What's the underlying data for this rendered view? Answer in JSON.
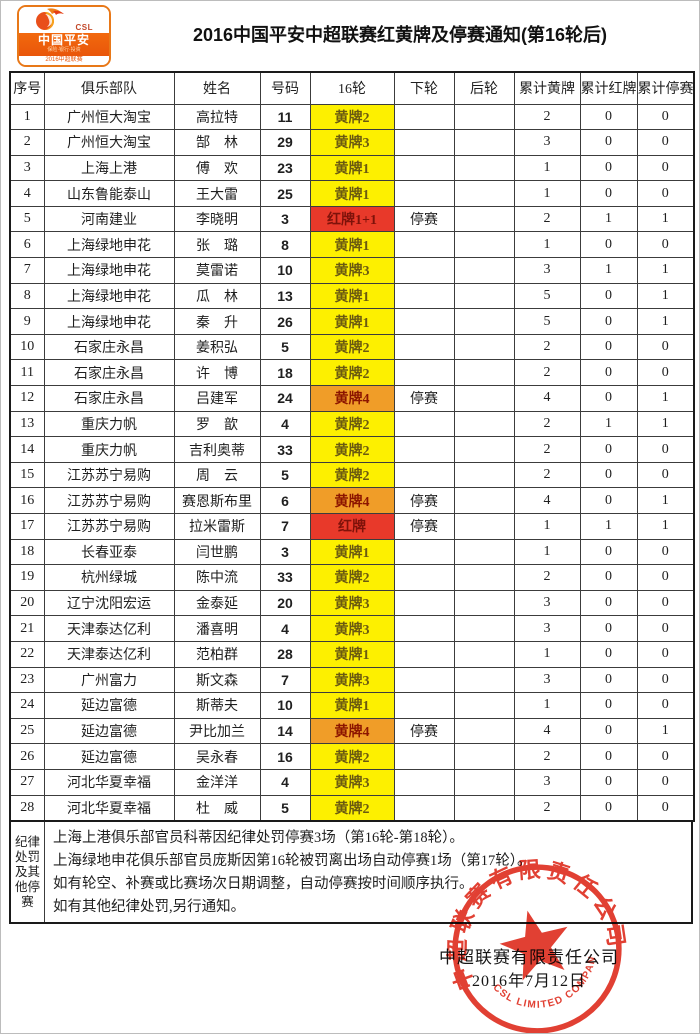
{
  "page": {
    "title": "2016中国平安中超联赛红黄牌及停赛通知(第16轮后)"
  },
  "logo": {
    "csl_label": "CSL",
    "brand": "中国平安",
    "tagline": "保险·银行·投资",
    "season": "2016中超联赛"
  },
  "table": {
    "headers": [
      "序号",
      "俱乐部队",
      "姓名",
      "号码",
      "16轮",
      "下轮",
      "后轮",
      "累计黄牌",
      "累计红牌",
      "累计停赛"
    ],
    "rows": [
      {
        "no": 1,
        "club": "广州恒大淘宝",
        "name": "高拉特",
        "number": "11",
        "round16": "黄牌2",
        "card": "yellow",
        "next": "",
        "later": "",
        "yellow_total": "2",
        "red_total": "0",
        "susp_total": "0"
      },
      {
        "no": 2,
        "club": "广州恒大淘宝",
        "name": "郜　林",
        "number": "29",
        "round16": "黄牌3",
        "card": "yellow",
        "next": "",
        "later": "",
        "yellow_total": "3",
        "red_total": "0",
        "susp_total": "0"
      },
      {
        "no": 3,
        "club": "上海上港",
        "name": "傅　欢",
        "number": "23",
        "round16": "黄牌1",
        "card": "yellow",
        "next": "",
        "later": "",
        "yellow_total": "1",
        "red_total": "0",
        "susp_total": "0"
      },
      {
        "no": 4,
        "club": "山东鲁能泰山",
        "name": "王大雷",
        "number": "25",
        "round16": "黄牌1",
        "card": "yellow",
        "next": "",
        "later": "",
        "yellow_total": "1",
        "red_total": "0",
        "susp_total": "0"
      },
      {
        "no": 5,
        "club": "河南建业",
        "name": "李晓明",
        "number": "3",
        "round16": "红牌1+1",
        "card": "red",
        "next": "停赛",
        "later": "",
        "yellow_total": "2",
        "red_total": "1",
        "susp_total": "1"
      },
      {
        "no": 6,
        "club": "上海绿地申花",
        "name": "张　璐",
        "number": "8",
        "round16": "黄牌1",
        "card": "yellow",
        "next": "",
        "later": "",
        "yellow_total": "1",
        "red_total": "0",
        "susp_total": "0"
      },
      {
        "no": 7,
        "club": "上海绿地申花",
        "name": "莫雷诺",
        "number": "10",
        "round16": "黄牌3",
        "card": "yellow",
        "next": "",
        "later": "",
        "yellow_total": "3",
        "red_total": "1",
        "susp_total": "1"
      },
      {
        "no": 8,
        "club": "上海绿地申花",
        "name": "瓜　林",
        "number": "13",
        "round16": "黄牌1",
        "card": "yellow",
        "next": "",
        "later": "",
        "yellow_total": "5",
        "red_total": "0",
        "susp_total": "1"
      },
      {
        "no": 9,
        "club": "上海绿地申花",
        "name": "秦　升",
        "number": "26",
        "round16": "黄牌1",
        "card": "yellow",
        "next": "",
        "later": "",
        "yellow_total": "5",
        "red_total": "0",
        "susp_total": "1"
      },
      {
        "no": 10,
        "club": "石家庄永昌",
        "name": "姜积弘",
        "number": "5",
        "round16": "黄牌2",
        "card": "yellow",
        "next": "",
        "later": "",
        "yellow_total": "2",
        "red_total": "0",
        "susp_total": "0"
      },
      {
        "no": 11,
        "club": "石家庄永昌",
        "name": "许　博",
        "number": "18",
        "round16": "黄牌2",
        "card": "yellow",
        "next": "",
        "later": "",
        "yellow_total": "2",
        "red_total": "0",
        "susp_total": "0"
      },
      {
        "no": 12,
        "club": "石家庄永昌",
        "name": "吕建军",
        "number": "24",
        "round16": "黄牌4",
        "card": "orange",
        "next": "停赛",
        "later": "",
        "yellow_total": "4",
        "red_total": "0",
        "susp_total": "1"
      },
      {
        "no": 13,
        "club": "重庆力帆",
        "name": "罗　歆",
        "number": "4",
        "round16": "黄牌2",
        "card": "yellow",
        "next": "",
        "later": "",
        "yellow_total": "2",
        "red_total": "1",
        "susp_total": "1"
      },
      {
        "no": 14,
        "club": "重庆力帆",
        "name": "吉利奥蒂",
        "number": "33",
        "round16": "黄牌2",
        "card": "yellow",
        "next": "",
        "later": "",
        "yellow_total": "2",
        "red_total": "0",
        "susp_total": "0"
      },
      {
        "no": 15,
        "club": "江苏苏宁易购",
        "name": "周　云",
        "number": "5",
        "round16": "黄牌2",
        "card": "yellow",
        "next": "",
        "later": "",
        "yellow_total": "2",
        "red_total": "0",
        "susp_total": "0"
      },
      {
        "no": 16,
        "club": "江苏苏宁易购",
        "name": "赛恩斯布里",
        "number": "6",
        "round16": "黄牌4",
        "card": "orange",
        "next": "停赛",
        "later": "",
        "yellow_total": "4",
        "red_total": "0",
        "susp_total": "1"
      },
      {
        "no": 17,
        "club": "江苏苏宁易购",
        "name": "拉米雷斯",
        "number": "7",
        "round16": "红牌",
        "card": "red",
        "next": "停赛",
        "later": "",
        "yellow_total": "1",
        "red_total": "1",
        "susp_total": "1"
      },
      {
        "no": 18,
        "club": "长春亚泰",
        "name": "闫世鹏",
        "number": "3",
        "round16": "黄牌1",
        "card": "yellow",
        "next": "",
        "later": "",
        "yellow_total": "1",
        "red_total": "0",
        "susp_total": "0"
      },
      {
        "no": 19,
        "club": "杭州绿城",
        "name": "陈中流",
        "number": "33",
        "round16": "黄牌2",
        "card": "yellow",
        "next": "",
        "later": "",
        "yellow_total": "2",
        "red_total": "0",
        "susp_total": "0"
      },
      {
        "no": 20,
        "club": "辽宁沈阳宏运",
        "name": "金泰延",
        "number": "20",
        "round16": "黄牌3",
        "card": "yellow",
        "next": "",
        "later": "",
        "yellow_total": "3",
        "red_total": "0",
        "susp_total": "0"
      },
      {
        "no": 21,
        "club": "天津泰达亿利",
        "name": "潘喜明",
        "number": "4",
        "round16": "黄牌3",
        "card": "yellow",
        "next": "",
        "later": "",
        "yellow_total": "3",
        "red_total": "0",
        "susp_total": "0"
      },
      {
        "no": 22,
        "club": "天津泰达亿利",
        "name": "范柏群",
        "number": "28",
        "round16": "黄牌1",
        "card": "yellow",
        "next": "",
        "later": "",
        "yellow_total": "1",
        "red_total": "0",
        "susp_total": "0"
      },
      {
        "no": 23,
        "club": "广州富力",
        "name": "斯文森",
        "number": "7",
        "round16": "黄牌3",
        "card": "yellow",
        "next": "",
        "later": "",
        "yellow_total": "3",
        "red_total": "0",
        "susp_total": "0"
      },
      {
        "no": 24,
        "club": "延边富德",
        "name": "斯蒂夫",
        "number": "10",
        "round16": "黄牌1",
        "card": "yellow",
        "next": "",
        "later": "",
        "yellow_total": "1",
        "red_total": "0",
        "susp_total": "0"
      },
      {
        "no": 25,
        "club": "延边富德",
        "name": "尹比加兰",
        "number": "14",
        "round16": "黄牌4",
        "card": "orange",
        "next": "停赛",
        "later": "",
        "yellow_total": "4",
        "red_total": "0",
        "susp_total": "1"
      },
      {
        "no": 26,
        "club": "延边富德",
        "name": "吴永春",
        "number": "16",
        "round16": "黄牌2",
        "card": "yellow",
        "next": "",
        "later": "",
        "yellow_total": "2",
        "red_total": "0",
        "susp_total": "0"
      },
      {
        "no": 27,
        "club": "河北华夏幸福",
        "name": "金洋洋",
        "number": "4",
        "round16": "黄牌3",
        "card": "yellow",
        "next": "",
        "later": "",
        "yellow_total": "3",
        "red_total": "0",
        "susp_total": "0"
      },
      {
        "no": 28,
        "club": "河北华夏幸福",
        "name": "杜　威",
        "number": "5",
        "round16": "黄牌2",
        "card": "yellow",
        "next": "",
        "later": "",
        "yellow_total": "2",
        "red_total": "0",
        "susp_total": "0"
      }
    ]
  },
  "notes": {
    "label": "纪律处罚及其他停赛",
    "lines": [
      "上海上港俱乐部官员科蒂因纪律处罚停赛3场（第16轮-第18轮）。",
      "上海绿地申花俱乐部官员庞斯因第16轮被罚离出场自动停赛1场（第17轮）。",
      "如有轮空、补赛或比赛场次日期调整，自动停赛按时间顺序执行。",
      "如有其他纪律处罚,另行通知。"
    ]
  },
  "signature": {
    "company": "中超联赛有限责任公司",
    "date": "2016年7月12日"
  },
  "stamp": {
    "arc_top": "中超联赛有限责任公司",
    "arc_bottom": "CSL LIMITED COMPANY"
  },
  "colors": {
    "yellow_card_bg": "#fdf000",
    "orange_card_bg": "#f09d28",
    "red_card_bg": "#e8392a",
    "stamp_red": "#dd2516",
    "logo_orange": "#e9560a"
  }
}
